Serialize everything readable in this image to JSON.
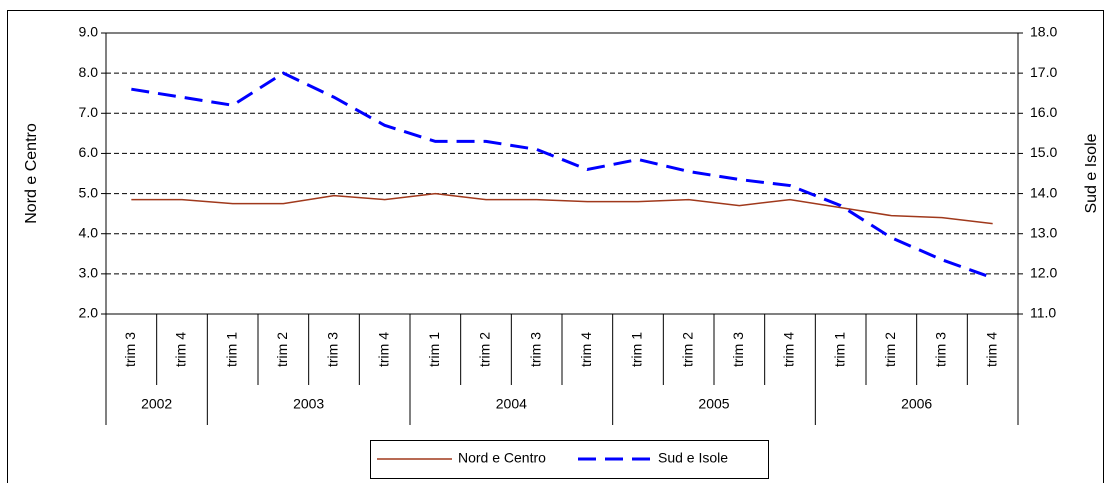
{
  "chart_data": {
    "type": "line",
    "categories": [
      "trim 3",
      "trim 4",
      "trim 1",
      "trim 2",
      "trim 3",
      "trim 4",
      "trim 1",
      "trim 2",
      "trim 3",
      "trim 4",
      "trim 1",
      "trim 2",
      "trim 3",
      "trim 4",
      "trim 1",
      "trim 2",
      "trim 3",
      "trim 4"
    ],
    "category_groups": [
      "2002",
      null,
      "2003",
      null,
      null,
      null,
      "2004",
      null,
      null,
      null,
      "2005",
      null,
      null,
      null,
      "2006",
      null,
      null,
      null
    ],
    "y_label": "Nord e Centro",
    "y2_label": "Sud e Isole",
    "ylim": [
      2,
      9
    ],
    "yticks": [
      {
        "value": 2,
        "label": "2.0"
      },
      {
        "value": 3,
        "label": "3.0"
      },
      {
        "value": 4,
        "label": "4.0"
      },
      {
        "value": 5,
        "label": "5.0"
      },
      {
        "value": 6,
        "label": "6.0"
      },
      {
        "value": 7,
        "label": "7.0"
      },
      {
        "value": 8,
        "label": "8.0"
      },
      {
        "value": 9,
        "label": "9.0"
      }
    ],
    "y2lim": [
      11,
      18
    ],
    "y2ticks": [
      {
        "value": 11,
        "label": "11.0"
      },
      {
        "value": 12,
        "label": "12.0"
      },
      {
        "value": 13,
        "label": "13.0"
      },
      {
        "value": 14,
        "label": "14.0"
      },
      {
        "value": 15,
        "label": "15.0"
      },
      {
        "value": 16,
        "label": "16.0"
      },
      {
        "value": 17,
        "label": "17.0"
      },
      {
        "value": 18,
        "label": "18.0"
      }
    ],
    "grid": true,
    "legend": "bottom",
    "series": [
      {
        "name": "Nord e Centro",
        "color": "#a0391c",
        "dash": false,
        "values": [
          4.85,
          4.85,
          4.75,
          4.75,
          4.95,
          4.85,
          5.0,
          4.85,
          4.85,
          4.8,
          4.8,
          4.85,
          4.7,
          4.85,
          4.65,
          4.45,
          4.4,
          4.25
        ]
      },
      {
        "name": "Sud e Isole",
        "color": "#0000ff",
        "dash": true,
        "axis": "y2",
        "values": [
          16.6,
          16.4,
          16.2,
          17.0,
          16.4,
          15.7,
          15.3,
          15.3,
          15.1,
          14.6,
          14.85,
          14.55,
          14.35,
          14.2,
          13.7,
          12.9,
          12.35,
          11.9
        ]
      }
    ]
  }
}
